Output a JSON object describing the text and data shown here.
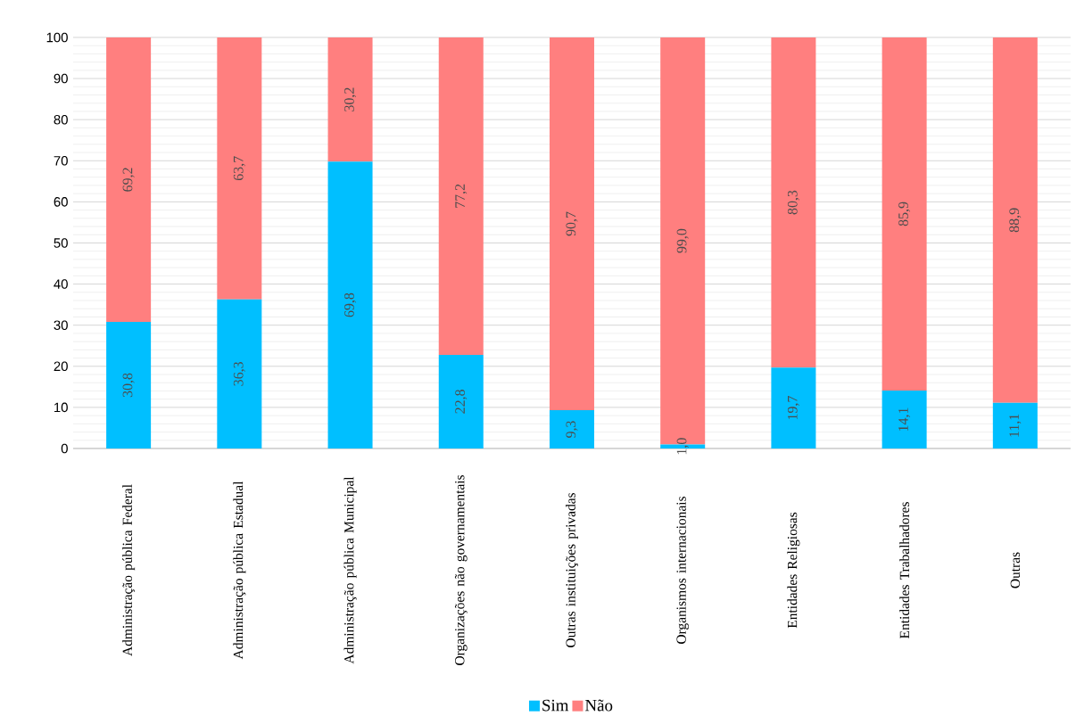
{
  "chart_data": {
    "type": "bar",
    "stacked": true,
    "categories": [
      "Administração pública Federal",
      "Administração pública Estadual",
      "Administração pública Municipal",
      "Organizações não governamentais",
      "Outras instituições privadas",
      "Organismos internacionais",
      "Entidades Religiosas",
      "Entidades Trabalhadores",
      "Outras"
    ],
    "series": [
      {
        "name": "Sim",
        "color": "#00bfff",
        "values": [
          30.8,
          36.3,
          69.8,
          22.8,
          9.3,
          1.0,
          19.7,
          14.1,
          11.1
        ],
        "value_labels": [
          "30,8",
          "36,3",
          "69,8",
          "22,8",
          "9,3",
          "1,0",
          "19,7",
          "14,1",
          "11,1"
        ]
      },
      {
        "name": "Não",
        "color": "#ff7f7f",
        "values": [
          69.2,
          63.7,
          30.2,
          77.2,
          90.7,
          99.0,
          80.3,
          85.9,
          88.9
        ],
        "value_labels": [
          "69,2",
          "63,7",
          "30,2",
          "77,2",
          "90,7",
          "99,0",
          "80,3",
          "85,9",
          "88,9"
        ]
      }
    ],
    "ylim": [
      0,
      100
    ],
    "yticks": [
      0,
      10,
      20,
      30,
      40,
      50,
      60,
      70,
      80,
      90,
      100
    ],
    "grid": "y",
    "legend": "bottom"
  }
}
